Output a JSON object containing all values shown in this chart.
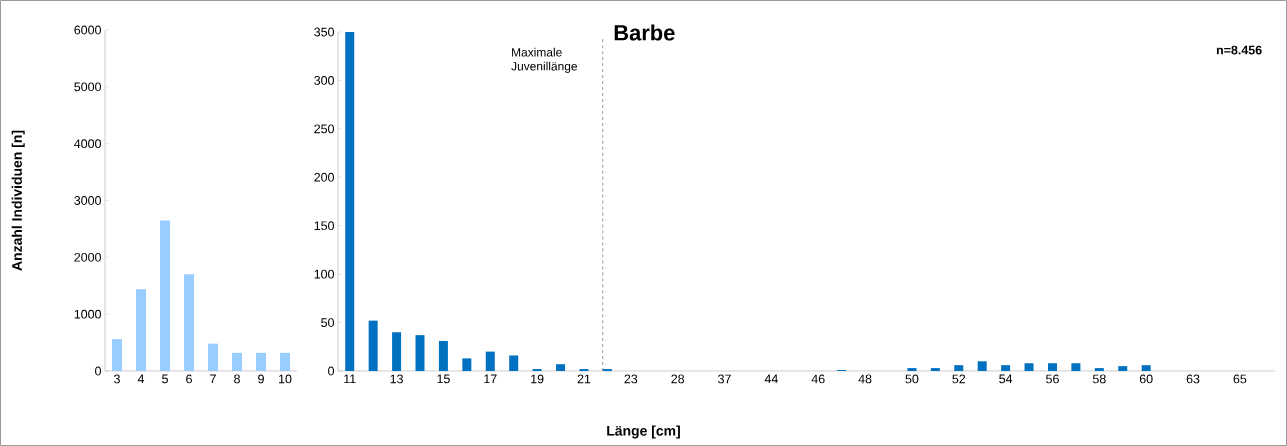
{
  "chart_data": [
    {
      "type": "bar",
      "ylabel": "Anzahl Individuen [n]",
      "categories": [
        "3",
        "4",
        "5",
        "6",
        "7",
        "8",
        "9",
        "10"
      ],
      "values": [
        560,
        1440,
        2650,
        1700,
        480,
        320,
        320,
        320
      ],
      "color": "#99ccff",
      "ylim": [
        0,
        6000
      ],
      "yticks": [
        0,
        1000,
        2000,
        3000,
        4000,
        5000,
        6000
      ]
    },
    {
      "type": "bar",
      "title": "Barbe",
      "xlabel": "Länge [cm]",
      "annotations": [
        "n=8.456",
        "Maximale Juvenillänge"
      ],
      "categories": [
        "11",
        null,
        "13",
        null,
        "15",
        null,
        "17",
        null,
        "19",
        null,
        "21",
        null,
        "23",
        null,
        "28",
        null,
        "37",
        null,
        "44",
        null,
        "46",
        null,
        "48",
        null,
        "50",
        null,
        "52",
        null,
        "54",
        null,
        "56",
        null,
        "58",
        null,
        "60",
        null,
        "63",
        null,
        "65",
        null
      ],
      "values": [
        350,
        52,
        40,
        37,
        31,
        13,
        20,
        16,
        2,
        7,
        2,
        2,
        0,
        0,
        0,
        0,
        0,
        0,
        0,
        0,
        0,
        1,
        0,
        0,
        3,
        3,
        6,
        10,
        6,
        8,
        8,
        8,
        3,
        5,
        6,
        0,
        0,
        0,
        0,
        0
      ],
      "color": "#0070c0",
      "ylim": [
        0,
        350
      ],
      "yticks": [
        0,
        50,
        100,
        150,
        200,
        250,
        300,
        350
      ]
    }
  ]
}
